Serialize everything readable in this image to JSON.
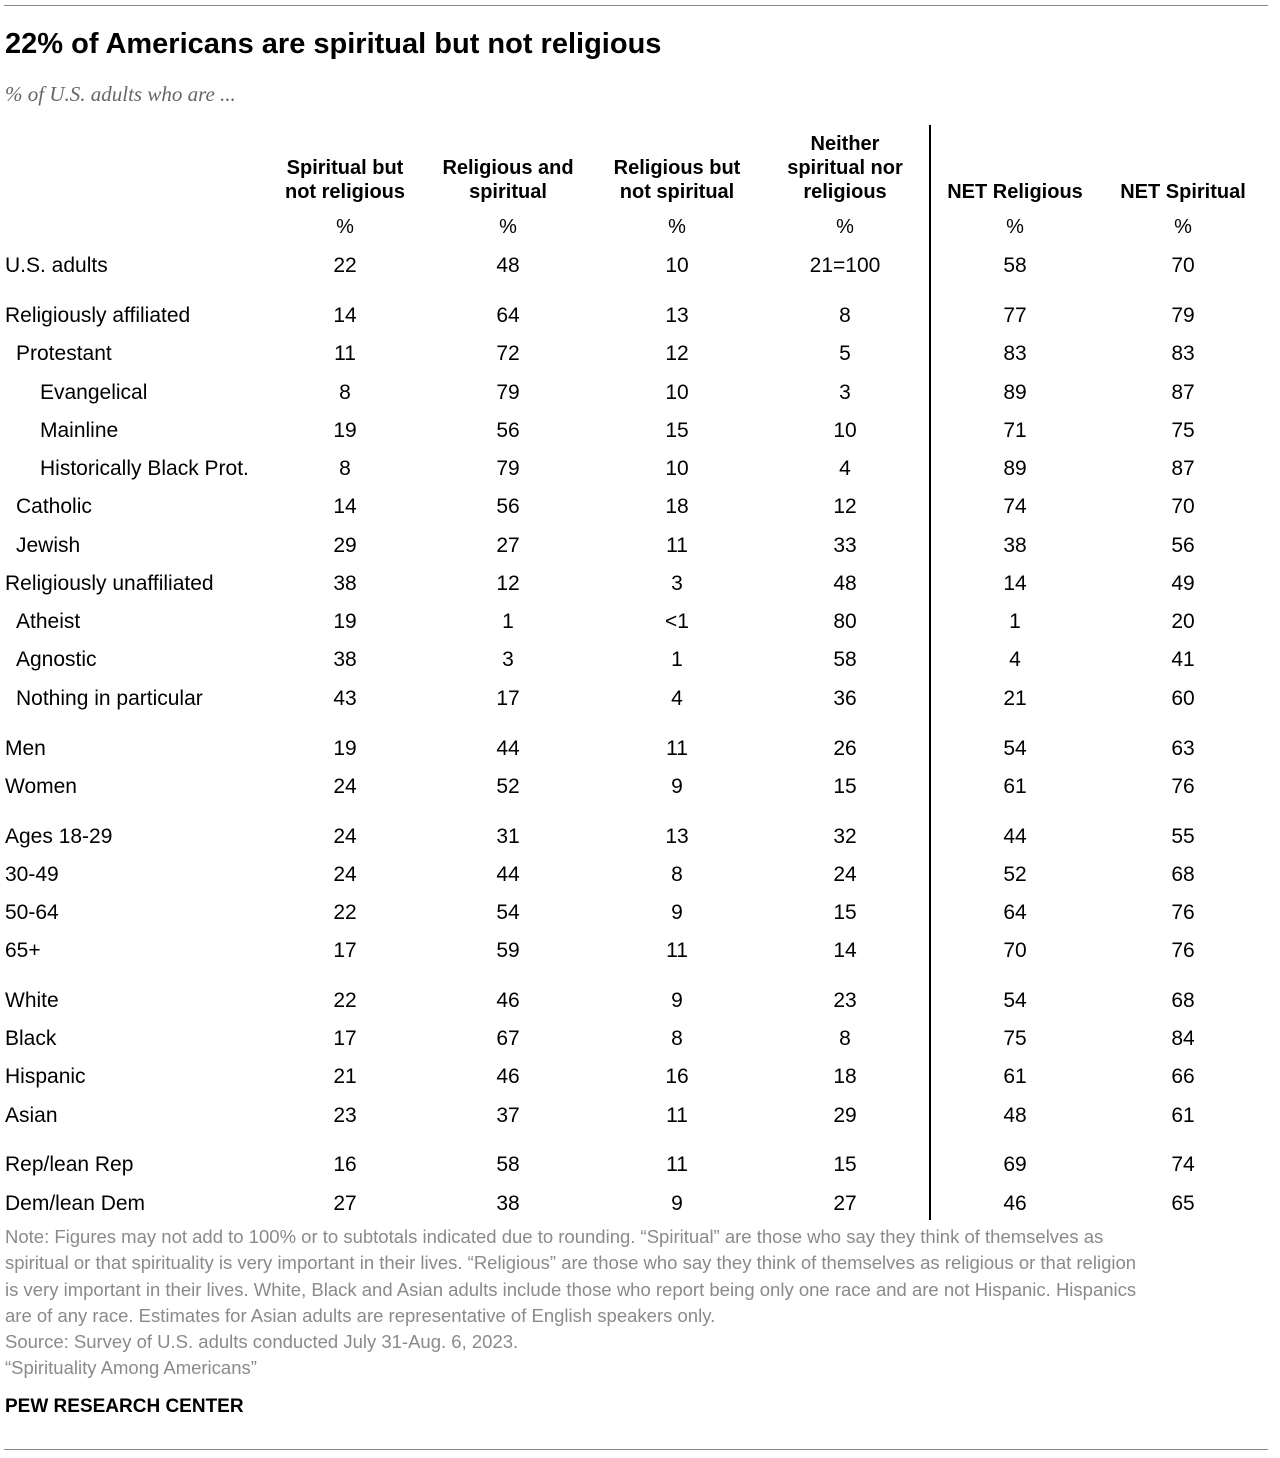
{
  "title": "22% of Americans are spiritual but not religious",
  "subtitle": "% of U.S. adults who are ...",
  "chart_data": {
    "type": "table",
    "columns": [
      {
        "label_lines": [
          "Spiritual but",
          "not religious"
        ]
      },
      {
        "label_lines": [
          "Religious and",
          "spiritual"
        ]
      },
      {
        "label_lines": [
          "Religious but",
          "not spiritual"
        ]
      },
      {
        "label_lines": [
          "Neither",
          "spiritual nor",
          "religious"
        ]
      },
      {
        "label_lines": [
          "NET Religious"
        ]
      },
      {
        "label_lines": [
          "NET Spiritual"
        ]
      }
    ],
    "unit": "%",
    "rows": [
      {
        "label": "U.S. adults",
        "indent": 0,
        "values": [
          "22",
          "48",
          "10",
          "21=100",
          "58",
          "70"
        ]
      },
      {
        "label": "Religiously affiliated",
        "indent": 0,
        "values": [
          "14",
          "64",
          "13",
          "8",
          "77",
          "79"
        ]
      },
      {
        "label": "Protestant",
        "indent": 1,
        "values": [
          "11",
          "72",
          "12",
          "5",
          "83",
          "83"
        ]
      },
      {
        "label": "Evangelical",
        "indent": 2,
        "values": [
          "8",
          "79",
          "10",
          "3",
          "89",
          "87"
        ]
      },
      {
        "label": "Mainline",
        "indent": 2,
        "values": [
          "19",
          "56",
          "15",
          "10",
          "71",
          "75"
        ]
      },
      {
        "label": "Historically Black Prot.",
        "indent": 2,
        "values": [
          "8",
          "79",
          "10",
          "4",
          "89",
          "87"
        ]
      },
      {
        "label": "Catholic",
        "indent": 1,
        "values": [
          "14",
          "56",
          "18",
          "12",
          "74",
          "70"
        ]
      },
      {
        "label": "Jewish",
        "indent": 1,
        "values": [
          "29",
          "27",
          "11",
          "33",
          "38",
          "56"
        ]
      },
      {
        "label": "Religiously unaffiliated",
        "indent": 0,
        "values": [
          "38",
          "12",
          "3",
          "48",
          "14",
          "49"
        ]
      },
      {
        "label": "Atheist",
        "indent": 1,
        "values": [
          "19",
          "1",
          "<1",
          "80",
          "1",
          "20"
        ]
      },
      {
        "label": "Agnostic",
        "indent": 1,
        "values": [
          "38",
          "3",
          "1",
          "58",
          "4",
          "41"
        ]
      },
      {
        "label": "Nothing in particular",
        "indent": 1,
        "values": [
          "43",
          "17",
          "4",
          "36",
          "21",
          "60"
        ]
      },
      {
        "label": "Men",
        "indent": 0,
        "values": [
          "19",
          "44",
          "11",
          "26",
          "54",
          "63"
        ]
      },
      {
        "label": "Women",
        "indent": 0,
        "values": [
          "24",
          "52",
          "9",
          "15",
          "61",
          "76"
        ]
      },
      {
        "label": "Ages 18-29",
        "indent": 0,
        "values": [
          "24",
          "31",
          "13",
          "32",
          "44",
          "55"
        ]
      },
      {
        "label": "30-49",
        "indent": 0,
        "values": [
          "24",
          "44",
          "8",
          "24",
          "52",
          "68"
        ]
      },
      {
        "label": "50-64",
        "indent": 0,
        "values": [
          "22",
          "54",
          "9",
          "15",
          "64",
          "76"
        ]
      },
      {
        "label": "65+",
        "indent": 0,
        "values": [
          "17",
          "59",
          "11",
          "14",
          "70",
          "76"
        ]
      },
      {
        "label": "White",
        "indent": 0,
        "values": [
          "22",
          "46",
          "9",
          "23",
          "54",
          "68"
        ]
      },
      {
        "label": "Black",
        "indent": 0,
        "values": [
          "17",
          "67",
          "8",
          "8",
          "75",
          "84"
        ]
      },
      {
        "label": "Hispanic",
        "indent": 0,
        "values": [
          "21",
          "46",
          "16",
          "18",
          "61",
          "66"
        ]
      },
      {
        "label": "Asian",
        "indent": 0,
        "values": [
          "23",
          "37",
          "11",
          "29",
          "48",
          "61"
        ]
      },
      {
        "label": "Rep/lean Rep",
        "indent": 0,
        "values": [
          "16",
          "58",
          "11",
          "15",
          "69",
          "74"
        ]
      },
      {
        "label": "Dem/lean Dem",
        "indent": 0,
        "values": [
          "27",
          "38",
          "9",
          "27",
          "46",
          "65"
        ]
      }
    ]
  },
  "note_lines": [
    "Note: Figures may not add to 100% or to subtotals indicated due to rounding. “Spiritual” are those who say they think of themselves as",
    "spiritual or that spirituality is very important in their lives. “Religious” are those who say they think of themselves as religious or that religion",
    "is very important in their lives. White, Black and Asian adults include those who report being only one race and are not Hispanic. Hispanics",
    "are of any race. Estimates for Asian adults are representative of English speakers only.",
    "Source: Survey of U.S. adults conducted July 31-Aug. 6, 2023.",
    "“Spirituality Among Americans”"
  ],
  "brand": "PEW RESEARCH CENTER"
}
